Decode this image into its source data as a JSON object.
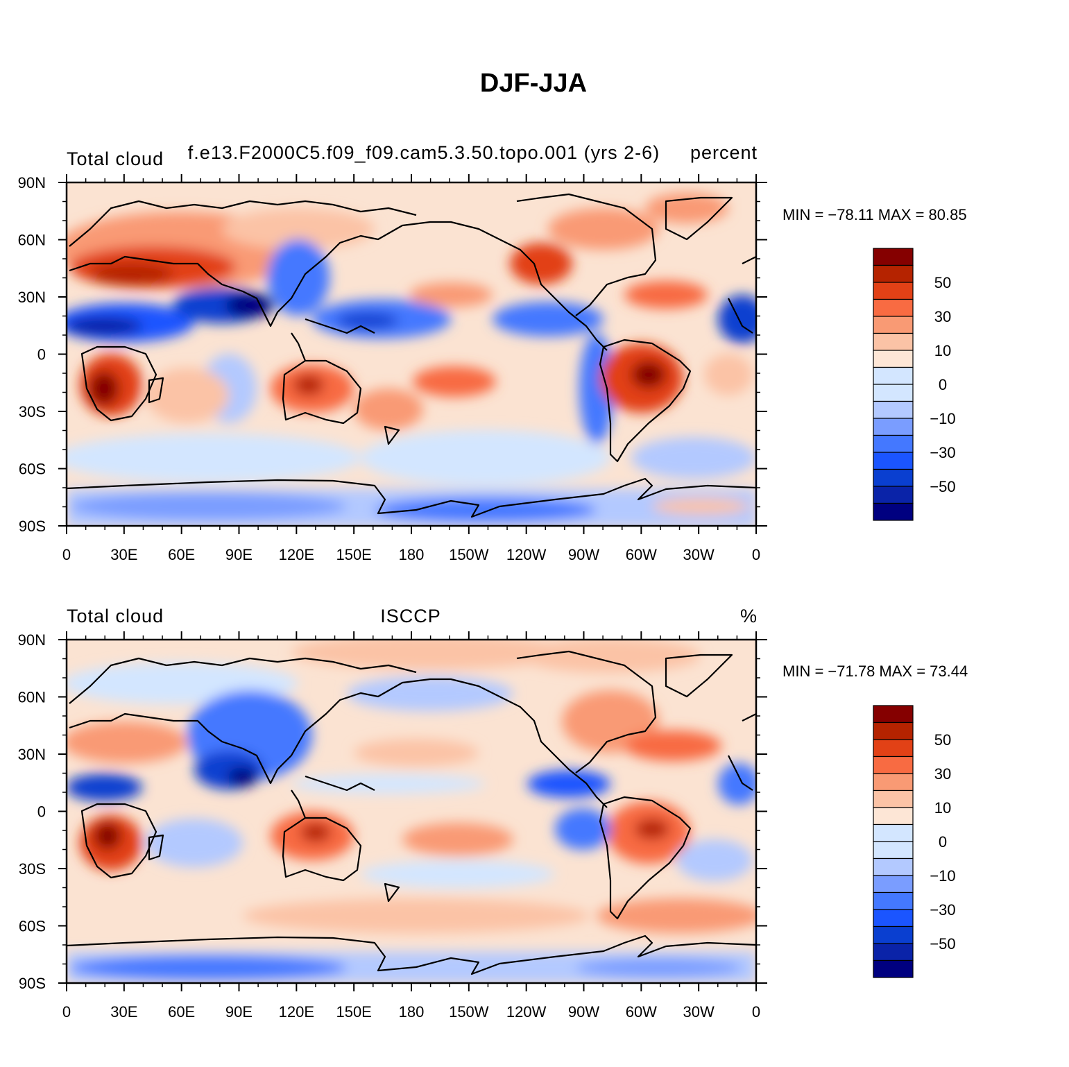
{
  "title": "DJF-JJA",
  "colors": {
    "palette": [
      "#000080",
      "#0a23a8",
      "#0a3fd0",
      "#1b55ff",
      "#4478ff",
      "#7a9dff",
      "#b3c9ff",
      "#d3e6ff",
      "#fde6d6",
      "#fbc3a6",
      "#f99a74",
      "#f86b42",
      "#e24116",
      "#b52300",
      "#850000"
    ],
    "continent": "#000000"
  },
  "colorbar": {
    "labels": [
      "50",
      "30",
      "10",
      "0",
      "−10",
      "−30",
      "−50"
    ]
  },
  "axes": {
    "lon_labels": [
      "0",
      "30E",
      "60E",
      "90E",
      "120E",
      "150E",
      "180",
      "150W",
      "120W",
      "90W",
      "60W",
      "30W",
      "0"
    ],
    "lat_labels": [
      "90N",
      "60N",
      "30N",
      "0",
      "30S",
      "60S",
      "90S"
    ]
  },
  "panels": [
    {
      "left_label": "Total cloud",
      "center_label": "f.e13.F2000C5.f09_f09.cam5.3.50.topo.001 (yrs 2-6)",
      "right_label": "percent",
      "stats": "MIN = −78.11  MAX =   80.85"
    },
    {
      "left_label": "Total cloud",
      "center_label": "ISCCP",
      "right_label": "%",
      "stats": "MIN = −71.78  MAX =   73.44"
    }
  ]
}
